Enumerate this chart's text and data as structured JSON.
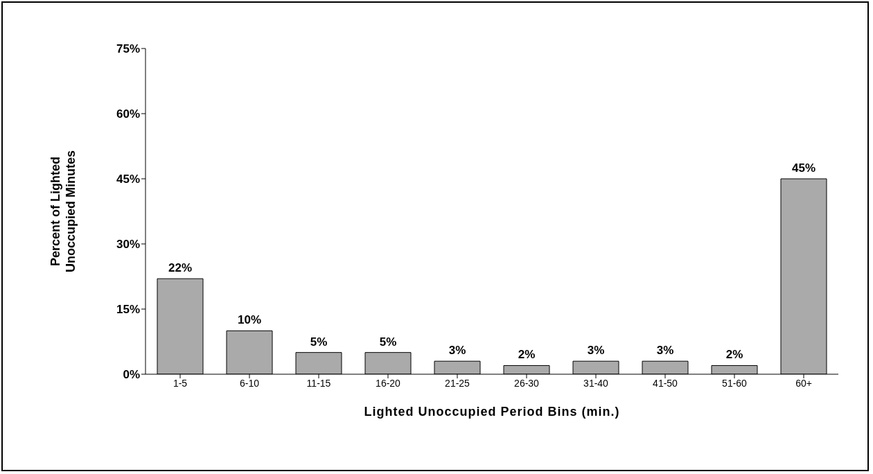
{
  "chart_data": {
    "type": "bar",
    "categories": [
      "1-5",
      "6-10",
      "11-15",
      "16-20",
      "21-25",
      "26-30",
      "31-40",
      "41-50",
      "51-60",
      "60+"
    ],
    "values": [
      22,
      10,
      5,
      5,
      3,
      2,
      3,
      3,
      2,
      45
    ],
    "value_labels": [
      "22%",
      "10%",
      "5%",
      "5%",
      "3%",
      "2%",
      "3%",
      "3%",
      "2%",
      "45%"
    ],
    "color": "#aaaaaa",
    "xlabel": "Lighted Unoccupied Period Bins (min.)",
    "ylabel": "Percent of Lighted Unoccupied Minutes",
    "ylim": [
      0,
      75
    ],
    "yticks": [
      {
        "value": 0,
        "label": "0%"
      },
      {
        "value": 15,
        "label": "15%"
      },
      {
        "value": 30,
        "label": "30%"
      },
      {
        "value": 45,
        "label": "45%"
      },
      {
        "value": 60,
        "label": "60%"
      },
      {
        "value": 75,
        "label": "75%"
      }
    ],
    "grid": false,
    "legend": false
  }
}
